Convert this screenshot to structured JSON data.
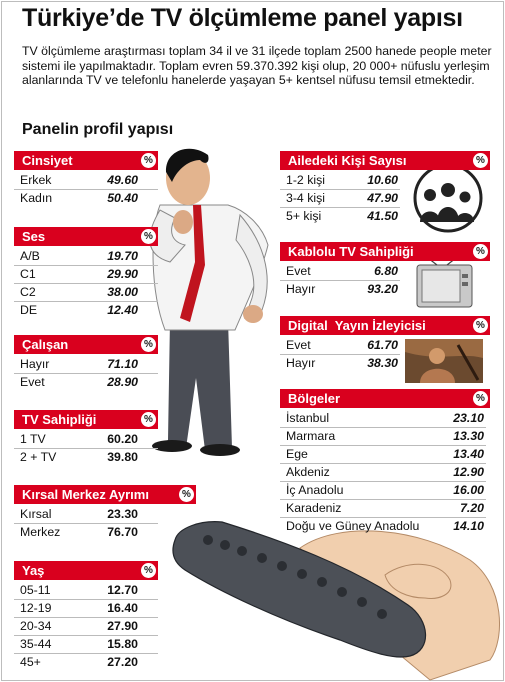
{
  "title": "Türkiye’de TV ölçümleme panel yapısı",
  "intro": "TV ölçümleme araştırması toplam 34 il ve 31 ilçede toplam 2500 hanede people meter sistemi ile yapılmaktadır. Toplam evren 59.370.392 kişi olup, 20 000+ nüfuslu yerleşim alanlarında TV ve telefonlu hanelerde yaşayan 5+ kentsel nüfusu temsil etmektedir.",
  "subtitle": "Panelin profil yapısı",
  "percent_symbol": "%",
  "chart_data": [
    {
      "type": "table",
      "title": "Cinsiyet",
      "categories": [
        "Erkek",
        "Kadın"
      ],
      "values": [
        49.6,
        50.4
      ],
      "labels": [
        "49.60",
        "50.40"
      ]
    },
    {
      "type": "table",
      "title": "Ses",
      "categories": [
        "A/B",
        "C1",
        "C2",
        "DE"
      ],
      "values": [
        19.7,
        29.9,
        38.0,
        12.4
      ],
      "labels": [
        "19.70",
        "29.90",
        "38.00",
        "12.40"
      ]
    },
    {
      "type": "table",
      "title": "Çalışan",
      "categories": [
        "Hayır",
        "Evet"
      ],
      "values": [
        71.1,
        28.9
      ],
      "labels": [
        "71.10",
        "28.90"
      ]
    },
    {
      "type": "table",
      "title": "TV Sahipliği",
      "categories": [
        "1 TV",
        "2 + TV"
      ],
      "values": [
        60.2,
        39.8
      ],
      "labels": [
        "60.20",
        "39.80"
      ]
    },
    {
      "type": "table",
      "title": "Kırsal Merkez Ayrımı",
      "categories": [
        "Kırsal",
        "Merkez"
      ],
      "values": [
        23.3,
        76.7
      ],
      "labels": [
        "23.30",
        "76.70"
      ]
    },
    {
      "type": "table",
      "title": "Yaş",
      "categories": [
        "05-11",
        "12-19",
        "20-34",
        "35-44",
        "45+"
      ],
      "values": [
        12.7,
        16.4,
        27.9,
        15.8,
        27.2
      ],
      "labels": [
        "12.70",
        "16.40",
        "27.90",
        "15.80",
        "27.20"
      ]
    },
    {
      "type": "table",
      "title": "Ailedeki Kişi Sayısı",
      "categories": [
        "1-2 kişi",
        "3-4 kişi",
        "5+ kişi"
      ],
      "values": [
        10.6,
        47.9,
        41.5
      ],
      "labels": [
        "10.60",
        "47.90",
        "41.50"
      ]
    },
    {
      "type": "table",
      "title": "Kablolu TV Sahipliği",
      "categories": [
        "Evet",
        "Hayır"
      ],
      "values": [
        6.8,
        93.2
      ],
      "labels": [
        "6.80",
        "93.20"
      ]
    },
    {
      "type": "table",
      "title": "Digital  Yayın İzleyicisi",
      "categories": [
        "Evet",
        "Hayır"
      ],
      "values": [
        61.7,
        38.3
      ],
      "labels": [
        "61.70",
        "38.30"
      ]
    },
    {
      "type": "table",
      "title": "Bölgeler",
      "categories": [
        "İstanbul",
        "Marmara",
        "Ege",
        "Akdeniz",
        "İç Anadolu",
        "Karadeniz",
        "Doğu ve Güney Anadolu"
      ],
      "values": [
        23.1,
        13.3,
        13.4,
        12.9,
        16.0,
        7.2,
        14.1
      ],
      "labels": [
        "23.10",
        "13.30",
        "13.40",
        "12.90",
        "16.00",
        "7.20",
        "14.10"
      ]
    }
  ],
  "colors": {
    "header_red": "#d9001e",
    "text": "#111111",
    "divider": "#bbbbbb"
  },
  "icons": [
    "businessman-illustration",
    "family-icon",
    "tv-set-icon",
    "movie-scene-thumbnail",
    "remote-control-illustration"
  ]
}
